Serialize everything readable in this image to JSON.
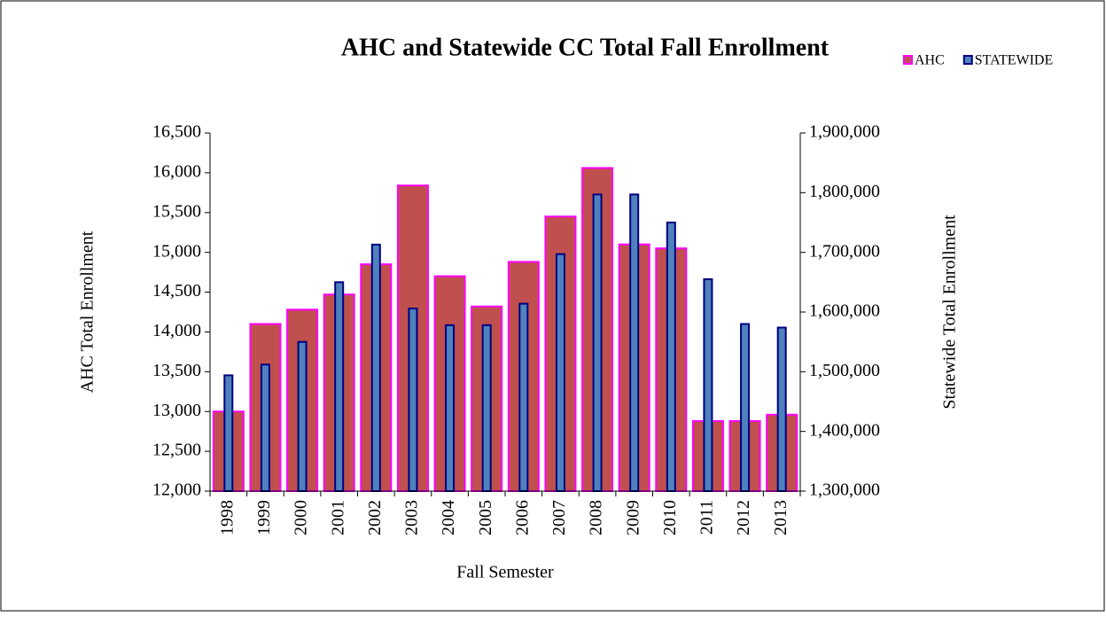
{
  "chart_data": {
    "type": "bar",
    "title": "AHC and Statewide CC Total Fall Enrollment",
    "x_label": "Fall Semester",
    "y_label": "AHC Total Enrollment",
    "y2_label": "Statewide Total Enrollment",
    "categories": [
      "1998",
      "1999",
      "2000",
      "2001",
      "2002",
      "2003",
      "2004",
      "2005",
      "2006",
      "2007",
      "2008",
      "2009",
      "2010",
      "2011",
      "2012",
      "2013"
    ],
    "series": [
      {
        "name": "AHC",
        "color": "#c0504d",
        "edge": "#ff00ff",
        "values": [
          13000,
          14100,
          14280,
          14470,
          14850,
          15840,
          14700,
          14320,
          14880,
          15450,
          16060,
          15100,
          15050,
          12880,
          12880,
          12960
        ]
      },
      {
        "name": "STATEWIDE",
        "color": "#4f81bd",
        "edge": "#000080",
        "axis": "y2",
        "values": [
          1494000,
          1512000,
          1550000,
          1650000,
          1713000,
          1606000,
          1578000,
          1578000,
          1614000,
          1697000,
          1797000,
          1797000,
          1750000,
          1655000,
          1580000,
          1574000
        ]
      }
    ],
    "ylim": [
      12000,
      16500
    ],
    "yticks": [
      {
        "value": 12000,
        "label": "12,000"
      },
      {
        "value": 12500,
        "label": "12,500"
      },
      {
        "value": 13000,
        "label": "13,000"
      },
      {
        "value": 13500,
        "label": "13,500"
      },
      {
        "value": 14000,
        "label": "14,000"
      },
      {
        "value": 14500,
        "label": "14,500"
      },
      {
        "value": 15000,
        "label": "15,000"
      },
      {
        "value": 15500,
        "label": "15,500"
      },
      {
        "value": 16000,
        "label": "16,000"
      },
      {
        "value": 16500,
        "label": "16,500"
      }
    ],
    "y2lim": [
      1300000,
      1900000
    ],
    "y2ticks": [
      {
        "value": 1300000,
        "label": "1,300,000"
      },
      {
        "value": 1400000,
        "label": "1,400,000"
      },
      {
        "value": 1500000,
        "label": "1,500,000"
      },
      {
        "value": 1600000,
        "label": "1,600,000"
      },
      {
        "value": 1700000,
        "label": "1,700,000"
      },
      {
        "value": 1800000,
        "label": "1,800,000"
      },
      {
        "value": 1900000,
        "label": "1,900,000"
      }
    ],
    "grid": false,
    "legend": "top-right"
  }
}
